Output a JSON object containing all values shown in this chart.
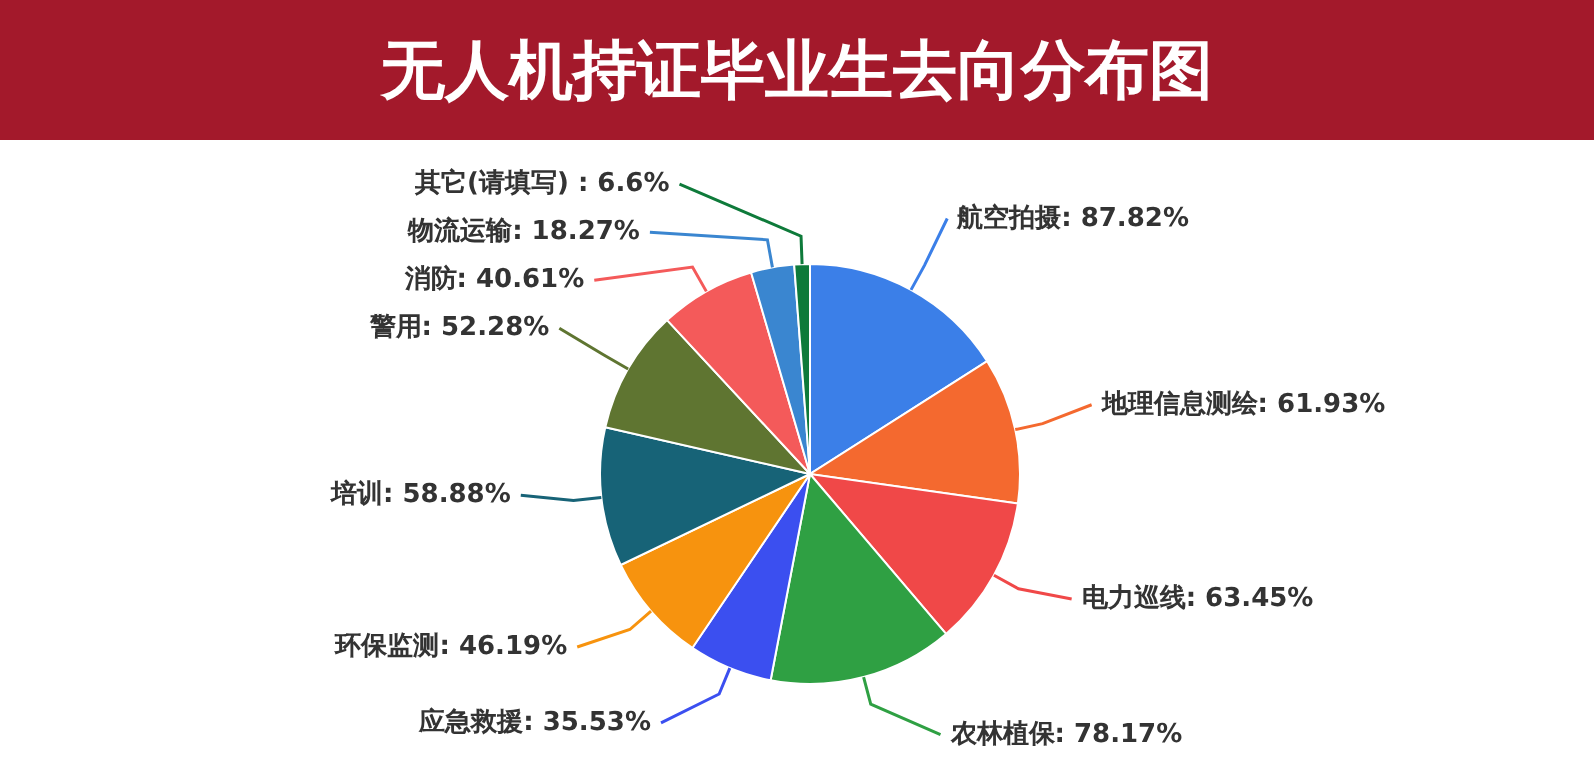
{
  "chart_data": {
    "type": "pie",
    "title": "无人机持证毕业生去向分布图",
    "categories": [
      "航空拍摄",
      "地理信息测绘",
      "电力巡线",
      "农林植保",
      "应急救援",
      "环保监测",
      "培训",
      "警用",
      "消防",
      "物流运输",
      "其它(请填写) "
    ],
    "values": [
      87.82,
      61.93,
      63.45,
      78.17,
      35.53,
      46.19,
      58.88,
      52.28,
      40.61,
      18.27,
      6.6
    ],
    "value_labels": [
      "87.82%",
      "61.93%",
      "63.45%",
      "78.17%",
      "35.53%",
      "46.19%",
      "58.88%",
      "52.28%",
      "40.61%",
      "18.27%",
      "6.6%"
    ],
    "colors": [
      "#3b7fe8",
      "#f4692f",
      "#f04848",
      "#2fa043",
      "#3b4ff0",
      "#f7930e",
      "#176377",
      "#5f7531",
      "#f45a5a",
      "#3a86d0",
      "#0e7a3a"
    ]
  }
}
